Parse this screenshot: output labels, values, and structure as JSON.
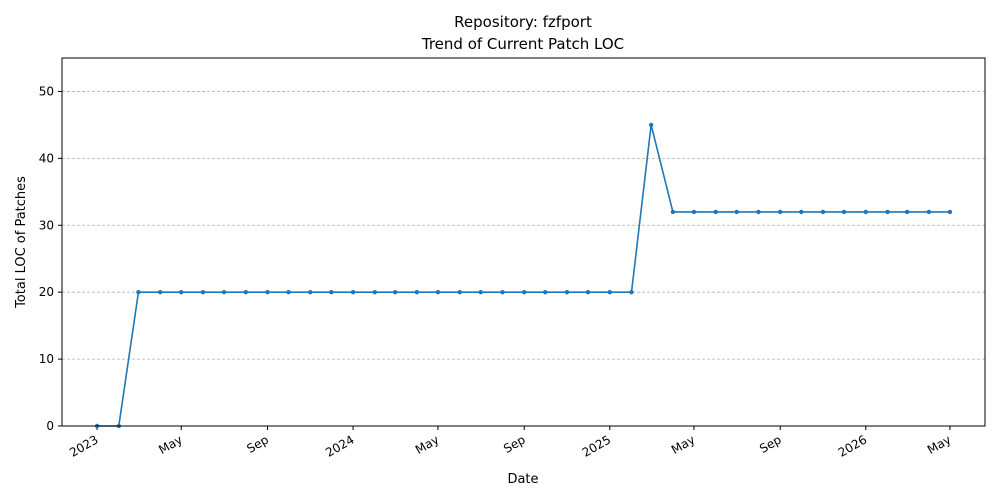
{
  "chart_data": {
    "type": "line",
    "title": "Repository: fzfport",
    "subtitle": "Trend of Current Patch LOC",
    "xlabel": "Date",
    "ylabel": "Total LOC of Patches",
    "ylim": [
      0,
      55
    ],
    "yticks": [
      0,
      10,
      20,
      30,
      40,
      50
    ],
    "xlim": [
      "2022-11-12",
      "2026-06-20"
    ],
    "xticks": [
      {
        "date": "2023-01-01",
        "label": "2023"
      },
      {
        "date": "2023-05-01",
        "label": "May"
      },
      {
        "date": "2023-09-01",
        "label": "Sep"
      },
      {
        "date": "2024-01-01",
        "label": "2024"
      },
      {
        "date": "2024-05-01",
        "label": "May"
      },
      {
        "date": "2024-09-01",
        "label": "Sep"
      },
      {
        "date": "2025-01-01",
        "label": "2025"
      },
      {
        "date": "2025-05-01",
        "label": "May"
      },
      {
        "date": "2025-09-01",
        "label": "Sep"
      },
      {
        "date": "2026-01-01",
        "label": "2026"
      },
      {
        "date": "2026-05-01",
        "label": "May"
      }
    ],
    "grid": "y-axis, dashed",
    "series": [
      {
        "color": "#1f77b4",
        "x": [
          "2023-01-01",
          "2023-02-01",
          "2023-03-01",
          "2023-04-01",
          "2023-05-01",
          "2023-06-01",
          "2023-07-01",
          "2023-08-01",
          "2023-09-01",
          "2023-10-01",
          "2023-11-01",
          "2023-12-01",
          "2024-01-01",
          "2024-02-01",
          "2024-03-01",
          "2024-04-01",
          "2024-05-01",
          "2024-06-01",
          "2024-07-01",
          "2024-08-01",
          "2024-09-01",
          "2024-10-01",
          "2024-11-01",
          "2024-12-01",
          "2025-01-01",
          "2025-02-01",
          "2025-03-01",
          "2025-04-01",
          "2025-05-01",
          "2025-06-01",
          "2025-07-01",
          "2025-08-01",
          "2025-09-01",
          "2025-10-01",
          "2025-11-01",
          "2025-12-01",
          "2026-01-01",
          "2026-02-01",
          "2026-03-01",
          "2026-04-01",
          "2026-05-01"
        ],
        "y": [
          0,
          0,
          20,
          20,
          20,
          20,
          20,
          20,
          20,
          20,
          20,
          20,
          20,
          20,
          20,
          20,
          20,
          20,
          20,
          20,
          20,
          20,
          20,
          20,
          20,
          20,
          45,
          32,
          32,
          32,
          32,
          32,
          32,
          32,
          32,
          32,
          32,
          32,
          32,
          32,
          32
        ]
      }
    ]
  }
}
